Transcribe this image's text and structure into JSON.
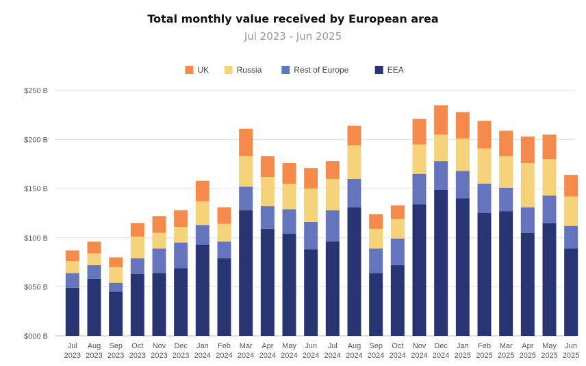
{
  "chart_data": {
    "type": "bar",
    "stacked": true,
    "title": "Total monthly value received by European area",
    "subtitle": "Jul 2023 - Jun 2025",
    "legend_position": "top-center",
    "grid": true,
    "ylim": [
      0,
      250
    ],
    "y_ticks": [
      0,
      50,
      100,
      150,
      200,
      250
    ],
    "y_tick_labels": [
      "$000 B",
      "$050 B",
      "$100 B",
      "$150 B",
      "$200 B",
      "$250 B"
    ],
    "categories": [
      [
        "Jul",
        "2023"
      ],
      [
        "Aug",
        "2023"
      ],
      [
        "Sep",
        "2023"
      ],
      [
        "Oct",
        "2023"
      ],
      [
        "Nov",
        "2023"
      ],
      [
        "Dec",
        "2023"
      ],
      [
        "Jan",
        "2024"
      ],
      [
        "Feb",
        "2024"
      ],
      [
        "Mar",
        "2024"
      ],
      [
        "Apr",
        "2024"
      ],
      [
        "May",
        "2024"
      ],
      [
        "Jun",
        "2024"
      ],
      [
        "Jul",
        "2024"
      ],
      [
        "Aug",
        "2024"
      ],
      [
        "Sep",
        "2024"
      ],
      [
        "Oct",
        "2024"
      ],
      [
        "Nov",
        "2024"
      ],
      [
        "Dec",
        "2024"
      ],
      [
        "Jan",
        "2025"
      ],
      [
        "Feb",
        "2025"
      ],
      [
        "Mar",
        "2025"
      ],
      [
        "Apr",
        "2025"
      ],
      [
        "May",
        "2025"
      ],
      [
        "Jun",
        "2025"
      ]
    ],
    "series": [
      {
        "name": "EEA",
        "color": "#283572",
        "values": [
          49,
          58,
          45,
          63,
          64,
          69,
          93,
          79,
          128,
          109,
          104,
          88,
          96,
          131,
          64,
          72,
          134,
          149,
          140,
          125,
          127,
          105,
          115,
          89
        ]
      },
      {
        "name": "Rest of Europe",
        "color": "#6474bd",
        "values": [
          15,
          14,
          9,
          16,
          25,
          26,
          20,
          17,
          24,
          23,
          25,
          28,
          32,
          29,
          25,
          27,
          31,
          29,
          28,
          30,
          24,
          26,
          28,
          23
        ]
      },
      {
        "name": "Russia",
        "color": "#f6d27b",
        "values": [
          12,
          12,
          16,
          22,
          16,
          16,
          24,
          18,
          31,
          30,
          26,
          34,
          32,
          34,
          20,
          20,
          30,
          27,
          33,
          36,
          32,
          45,
          37,
          30
        ]
      },
      {
        "name": "UK",
        "color": "#f48a4c",
        "values": [
          11,
          12,
          10,
          14,
          17,
          17,
          21,
          17,
          28,
          21,
          21,
          21,
          18,
          20,
          15,
          14,
          26,
          30,
          27,
          28,
          26,
          27,
          25,
          22
        ]
      }
    ],
    "legend_order": [
      "UK",
      "Russia",
      "Rest of Europe",
      "EEA"
    ]
  }
}
